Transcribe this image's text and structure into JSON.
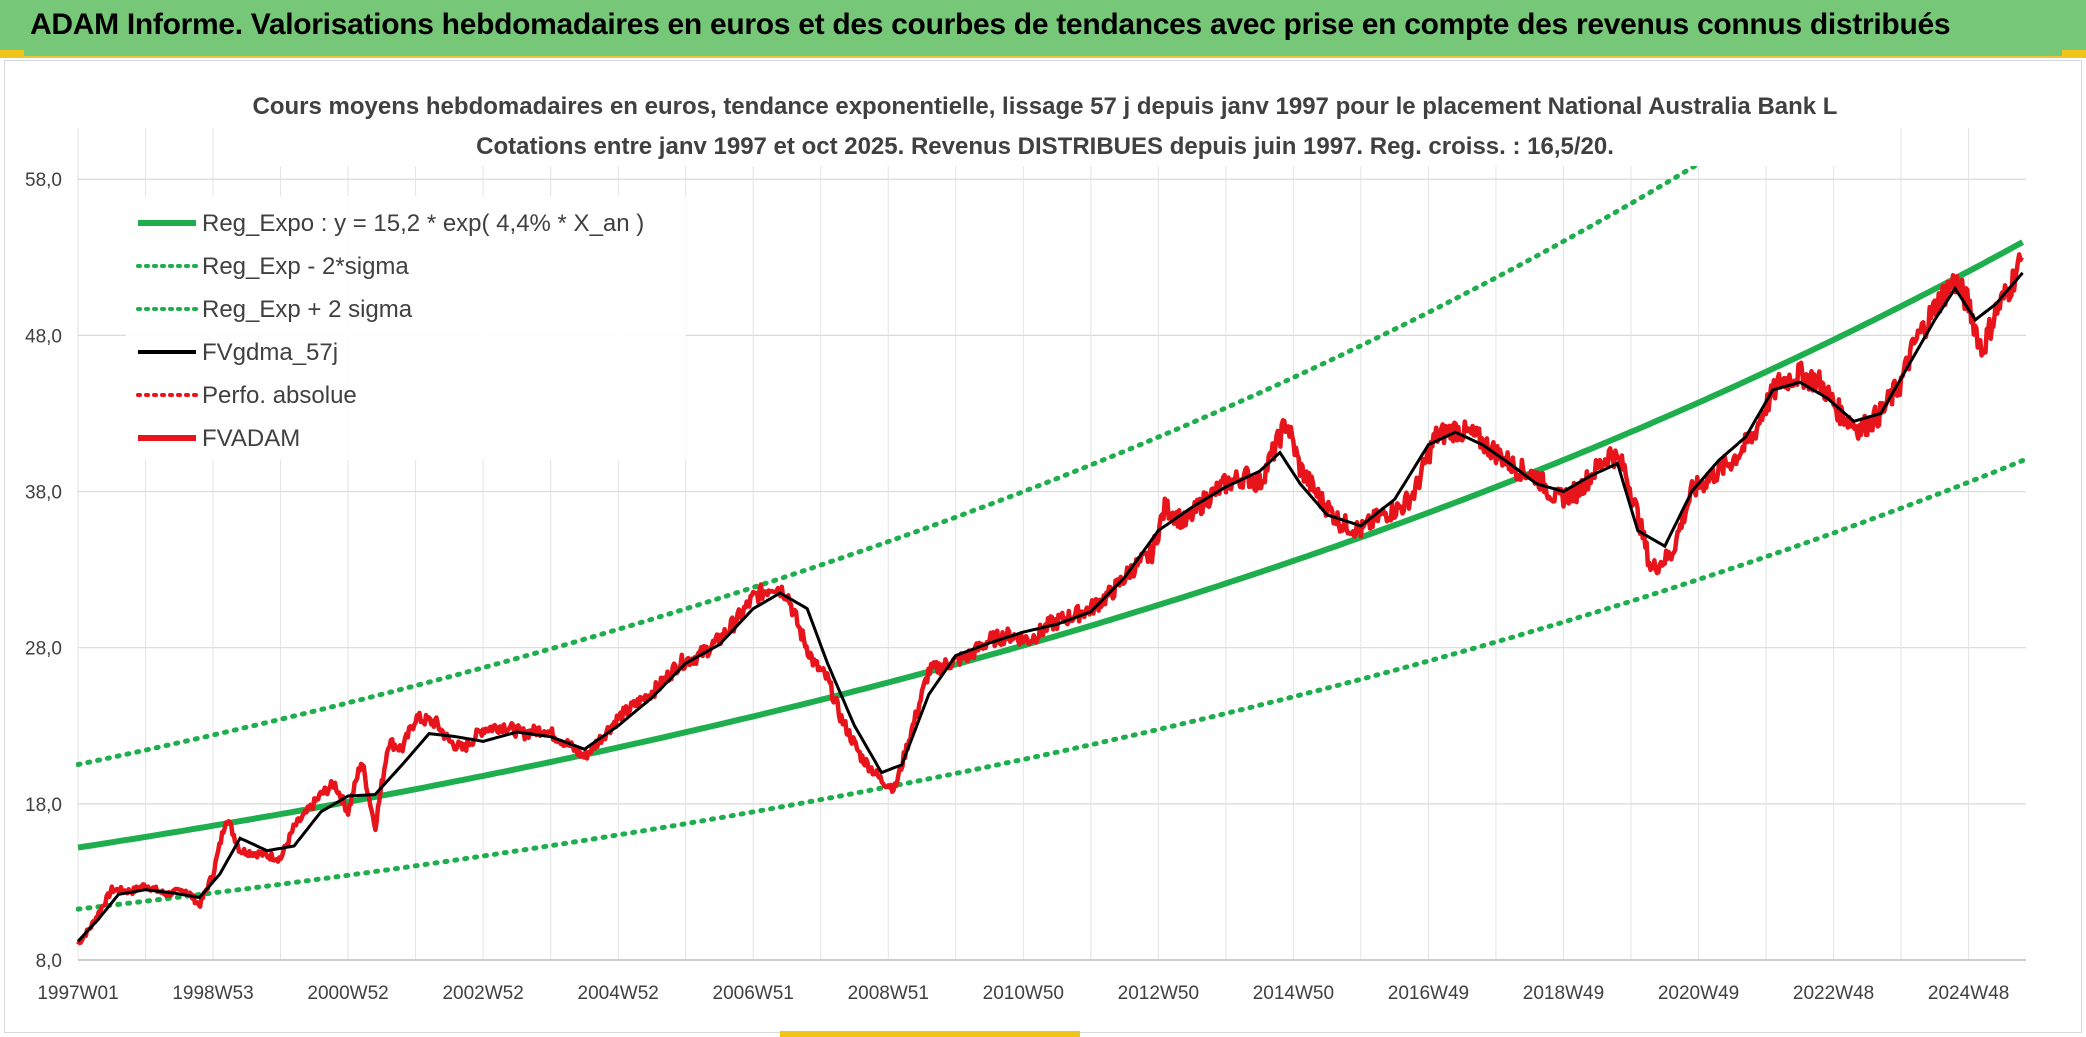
{
  "banner": {
    "title": "ADAM Informe. Valorisations hebdomadaires en euros et des courbes de tendances avec prise en compte des revenus connus distribués",
    "bg": "#76c777"
  },
  "chart_data": {
    "type": "line",
    "title_line1": "Cours moyens hebdomadaires en euros, tendance exponentielle, lissage 57 j depuis janv 1997 pour le placement National Australia Bank L",
    "title_line2": "Cotations entre janv 1997 et oct 2025. Revenus DISTRIBUES depuis juin 1997. Reg. croiss. : 16,5/20.",
    "ylim": [
      8,
      60
    ],
    "xlim": [
      1997.0,
      2025.85
    ],
    "yticks": [
      "8,0",
      "18,0",
      "28,0",
      "38,0",
      "48,0",
      "58,0"
    ],
    "ytick_values": [
      8,
      18,
      28,
      38,
      48,
      58
    ],
    "xticks": [
      "1997W01",
      "1998W53",
      "2000W52",
      "2002W52",
      "2004W52",
      "2006W51",
      "2008W51",
      "2010W50",
      "2012W50",
      "2014W50",
      "2016W49",
      "2018W49",
      "2020W49",
      "2022W48",
      "2024W48"
    ],
    "xtick_values": [
      1997.0,
      1999.0,
      2001.0,
      2003.0,
      2005.0,
      2007.0,
      2009.0,
      2011.0,
      2013.0,
      2015.0,
      2017.0,
      2019.0,
      2021.0,
      2023.0,
      2025.0
    ],
    "regression": {
      "a": 15.2,
      "rate": 0.044,
      "sigma_factor": 1.35
    },
    "legend": [
      {
        "label": "Reg_Expo : y = 15,2 * exp( 4,4% *  X_an )",
        "color": "#1fae4e",
        "style": "solid"
      },
      {
        "label": "Reg_Exp - 2*sigma",
        "color": "#1fae4e",
        "style": "dotted"
      },
      {
        "label": "Reg_Exp + 2 sigma",
        "color": "#1fae4e",
        "style": "dotted"
      },
      {
        "label": "FVgdma_57j",
        "color": "#000000",
        "style": "solid"
      },
      {
        "label": "Perfo. absolue",
        "color": "#e8141b",
        "style": "dotted"
      },
      {
        "label": "FVADAM",
        "color": "#e8141b",
        "style": "solid"
      }
    ],
    "series": [
      {
        "name": "FVADAM",
        "x": [
          1997.0,
          1997.2,
          1997.5,
          1997.8,
          1998.0,
          1998.3,
          1998.6,
          1998.8,
          1999.0,
          1999.2,
          1999.4,
          1999.7,
          2000.0,
          2000.2,
          2000.4,
          2000.6,
          2000.8,
          2001.0,
          2001.2,
          2001.4,
          2001.6,
          2001.8,
          2002.0,
          2002.3,
          2002.5,
          2002.7,
          2003.0,
          2003.3,
          2003.6,
          2003.9,
          2004.2,
          2004.5,
          2004.8,
          2005.0,
          2005.3,
          2005.6,
          2005.9,
          2006.2,
          2006.5,
          2006.8,
          2007.0,
          2007.3,
          2007.5,
          2007.7,
          2007.9,
          2008.1,
          2008.3,
          2008.6,
          2008.9,
          2009.1,
          2009.3,
          2009.6,
          2009.9,
          2010.2,
          2010.5,
          2010.8,
          2011.1,
          2011.4,
          2011.7,
          2012.0,
          2012.3,
          2012.6,
          2012.9,
          2013.1,
          2013.4,
          2013.7,
          2014.0,
          2014.3,
          2014.5,
          2014.7,
          2014.9,
          2015.1,
          2015.4,
          2015.7,
          2016.0,
          2016.3,
          2016.6,
          2016.8,
          2017.1,
          2017.4,
          2017.7,
          2018.0,
          2018.3,
          2018.6,
          2018.9,
          2019.2,
          2019.5,
          2019.7,
          2019.9,
          2020.1,
          2020.3,
          2020.6,
          2020.9,
          2021.2,
          2021.5,
          2021.8,
          2022.0,
          2022.2,
          2022.5,
          2022.8,
          2023.1,
          2023.4,
          2023.7,
          2024.0,
          2024.2,
          2024.4,
          2024.6,
          2024.8,
          2025.0,
          2025.2,
          2025.4,
          2025.6,
          2025.8
        ],
        "values": [
          9.0,
          10.2,
          12.5,
          12.4,
          12.8,
          12.2,
          12.5,
          11.5,
          13.5,
          17.2,
          15.0,
          14.8,
          14.5,
          16.5,
          17.5,
          18.6,
          19.3,
          17.5,
          20.8,
          16.5,
          22.0,
          21.5,
          23.5,
          23.2,
          22.0,
          21.5,
          22.8,
          23.0,
          22.5,
          22.8,
          22.0,
          21.0,
          22.5,
          23.5,
          24.5,
          25.5,
          27.0,
          27.5,
          28.5,
          30.0,
          31.2,
          32.0,
          31.5,
          29.0,
          27.0,
          26.0,
          23.5,
          21.0,
          19.5,
          19.0,
          22.0,
          26.5,
          27.0,
          27.5,
          28.5,
          28.8,
          28.5,
          29.5,
          30.0,
          30.5,
          31.5,
          33.0,
          34.0,
          37.0,
          36.0,
          37.5,
          38.5,
          39.0,
          38.5,
          40.5,
          42.5,
          39.5,
          37.5,
          36.0,
          35.5,
          36.5,
          37.0,
          38.0,
          41.5,
          42.0,
          41.5,
          40.5,
          39.5,
          39.0,
          37.5,
          38.0,
          39.5,
          40.5,
          39.5,
          36.5,
          33.0,
          34.0,
          38.0,
          39.0,
          40.0,
          41.5,
          43.5,
          45.0,
          45.5,
          45.0,
          43.0,
          42.0,
          43.0,
          45.0,
          47.5,
          49.0,
          50.5,
          51.5,
          50.0,
          47.0,
          49.5,
          51.0,
          53.0
        ]
      },
      {
        "name": "FVgdma_57j",
        "x": [
          1997.0,
          1997.3,
          1997.6,
          1998.0,
          1998.4,
          1998.8,
          1999.1,
          1999.4,
          1999.8,
          2000.2,
          2000.6,
          2001.0,
          2001.4,
          2001.8,
          2002.2,
          2002.6,
          2003.0,
          2003.5,
          2004.0,
          2004.5,
          2005.0,
          2005.5,
          2006.0,
          2006.5,
          2007.0,
          2007.4,
          2007.8,
          2008.1,
          2008.5,
          2008.9,
          2009.2,
          2009.6,
          2010.0,
          2010.5,
          2011.0,
          2011.5,
          2012.0,
          2012.5,
          2013.0,
          2013.5,
          2014.0,
          2014.5,
          2014.8,
          2015.1,
          2015.5,
          2016.0,
          2016.5,
          2017.0,
          2017.4,
          2017.8,
          2018.2,
          2018.6,
          2019.0,
          2019.4,
          2019.8,
          2020.1,
          2020.5,
          2020.9,
          2021.3,
          2021.7,
          2022.1,
          2022.5,
          2022.9,
          2023.3,
          2023.7,
          2024.1,
          2024.5,
          2024.8,
          2025.1,
          2025.4,
          2025.8
        ],
        "values": [
          9.2,
          10.6,
          12.2,
          12.5,
          12.3,
          12.0,
          13.5,
          15.8,
          15.0,
          15.3,
          17.5,
          18.5,
          18.6,
          20.5,
          22.5,
          22.3,
          22.0,
          22.6,
          22.3,
          21.5,
          23.0,
          24.8,
          27.0,
          28.2,
          30.5,
          31.5,
          30.5,
          27.0,
          23.0,
          20.0,
          20.5,
          25.0,
          27.5,
          28.3,
          29.0,
          29.5,
          30.3,
          32.5,
          35.5,
          37.0,
          38.3,
          39.3,
          40.5,
          38.5,
          36.5,
          35.8,
          37.5,
          41.0,
          41.8,
          41.0,
          39.8,
          38.5,
          38.0,
          39.0,
          39.8,
          35.5,
          34.5,
          38.0,
          40.0,
          41.5,
          44.5,
          45.0,
          44.0,
          42.5,
          43.0,
          46.0,
          49.0,
          51.0,
          49.0,
          50.0,
          52.0
        ]
      }
    ]
  }
}
